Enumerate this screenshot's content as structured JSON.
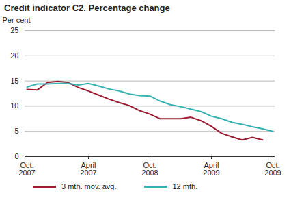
{
  "chart_data": {
    "type": "line",
    "title": "Credit indicator C2. Percentage change",
    "y_label": "Per cent",
    "categories": [
      "Oct. 2007",
      null,
      null,
      null,
      null,
      null,
      "April 2007",
      null,
      null,
      null,
      null,
      null,
      "Oct. 2008",
      null,
      null,
      null,
      null,
      null,
      "April 2009",
      null,
      null,
      null,
      null,
      null,
      "Oct. 2009"
    ],
    "series": [
      {
        "name": "3 mth. mov. avg.",
        "color": "#9b1b30",
        "values": [
          13.3,
          13.2,
          14.7,
          14.9,
          14.7,
          13.7,
          13.0,
          12.2,
          11.4,
          10.7,
          10.1,
          9.1,
          8.4,
          7.5,
          7.5,
          7.5,
          7.8,
          7.1,
          6.0,
          4.6,
          3.9,
          3.3,
          3.8,
          3.3,
          null
        ]
      },
      {
        "name": "12 mth.",
        "color": "#36b0b0",
        "values": [
          13.8,
          14.4,
          14.4,
          14.5,
          14.5,
          14.2,
          14.5,
          14.0,
          13.4,
          13.0,
          12.4,
          12.1,
          12.0,
          11.0,
          10.3,
          9.9,
          9.4,
          8.9,
          8.0,
          7.5,
          6.8,
          6.4,
          5.9,
          5.5,
          5.0
        ]
      }
    ],
    "ylim": [
      0,
      25
    ],
    "yticks": [
      0,
      5,
      10,
      15,
      20,
      25
    ],
    "grid": true,
    "legend": "bottom"
  }
}
